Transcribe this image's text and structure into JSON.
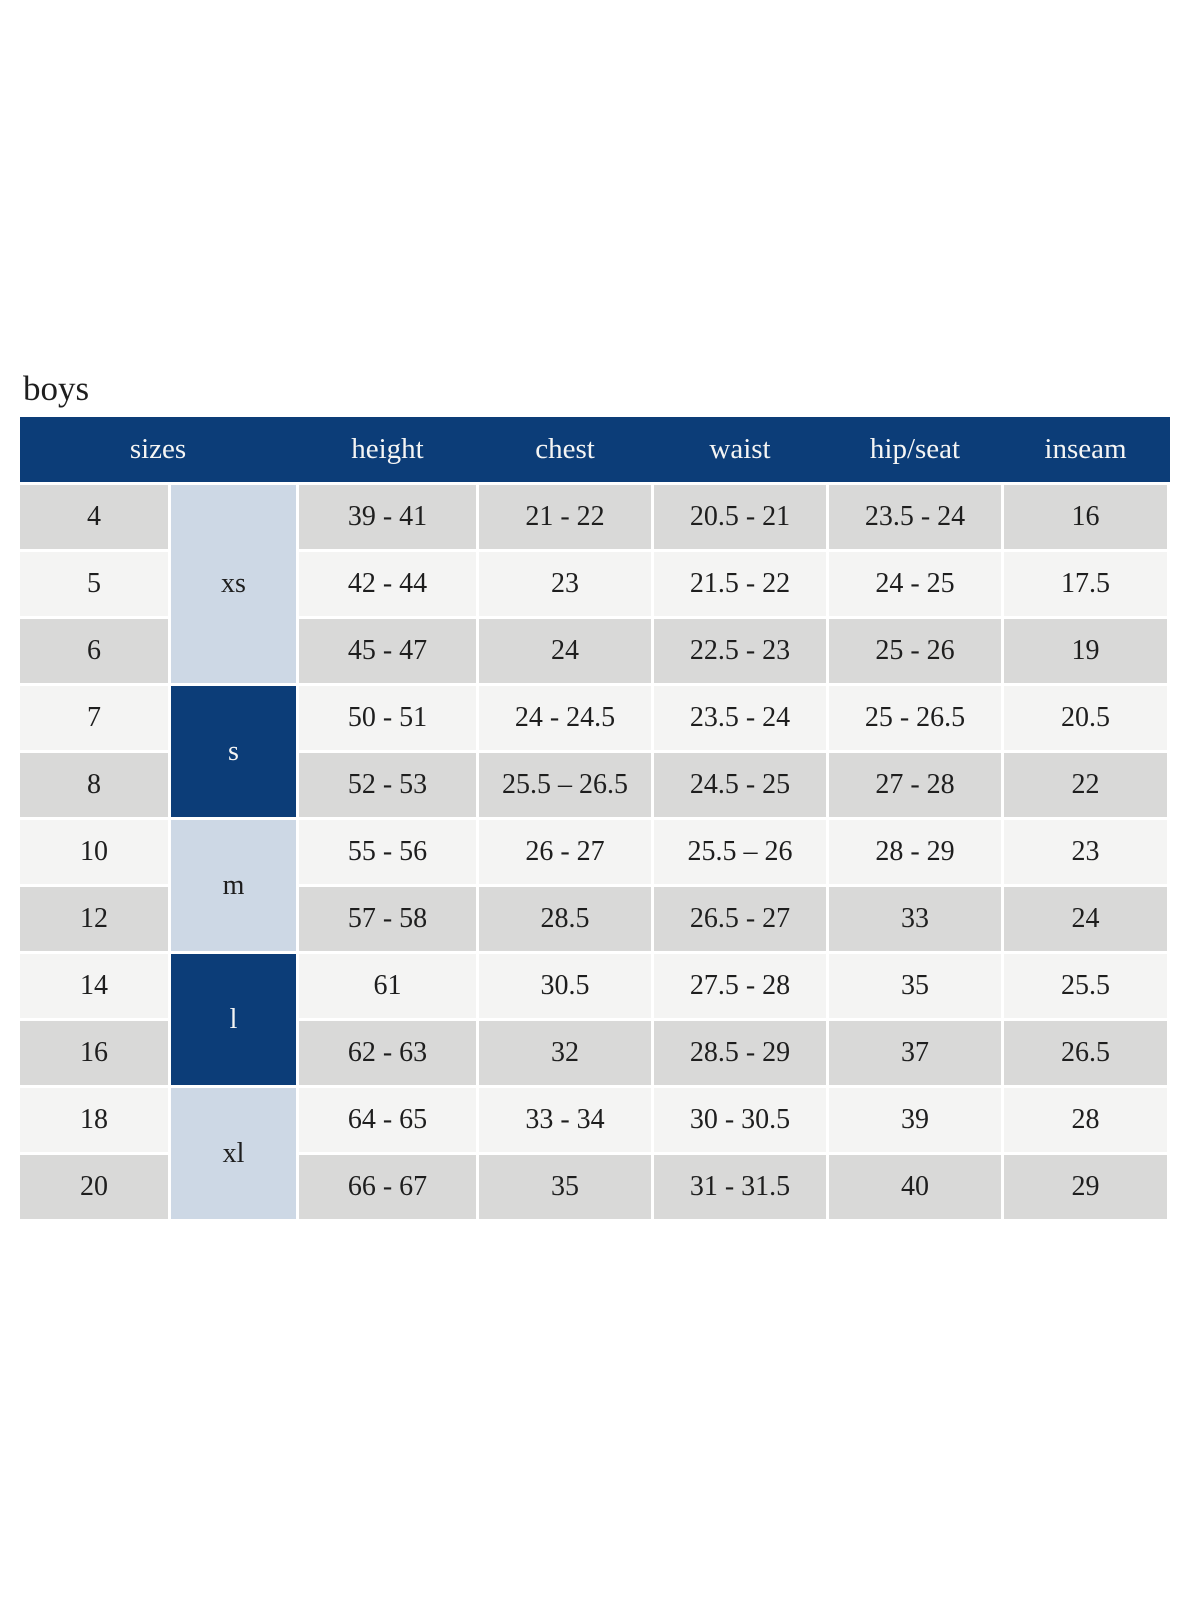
{
  "page": {
    "title": "boys"
  },
  "colors": {
    "header_bg": "#0c3d78",
    "header_text": "#f5f5f4",
    "group_dark_bg": "#0c3d78",
    "group_light_bg": "#cdd8e5",
    "row_gray": "#d9d9d8",
    "row_light": "#f4f4f3",
    "body_text": "#1e1e1e"
  },
  "table": {
    "headers": [
      "sizes",
      "height",
      "chest",
      "waist",
      "hip/seat",
      "inseam"
    ],
    "groups": [
      {
        "label": "xs",
        "style": "light",
        "row_span": 3
      },
      {
        "label": "s",
        "style": "dark",
        "row_span": 2
      },
      {
        "label": "m",
        "style": "light",
        "row_span": 2
      },
      {
        "label": "l",
        "style": "dark",
        "row_span": 2
      },
      {
        "label": "xl",
        "style": "light",
        "row_span": 2
      }
    ],
    "rows": [
      {
        "size": "4",
        "height": "39 - 41",
        "chest": "21 - 22",
        "waist": "20.5 - 21",
        "hip_seat": "23.5 - 24",
        "inseam": "16"
      },
      {
        "size": "5",
        "height": "42 - 44",
        "chest": "23",
        "waist": "21.5 - 22",
        "hip_seat": "24 - 25",
        "inseam": "17.5"
      },
      {
        "size": "6",
        "height": "45 - 47",
        "chest": "24",
        "waist": "22.5 - 23",
        "hip_seat": "25 - 26",
        "inseam": "19"
      },
      {
        "size": "7",
        "height": "50 - 51",
        "chest": "24 - 24.5",
        "waist": "23.5 - 24",
        "hip_seat": "25 - 26.5",
        "inseam": "20.5"
      },
      {
        "size": "8",
        "height": "52 - 53",
        "chest": "25.5 – 26.5",
        "waist": "24.5 - 25",
        "hip_seat": "27 - 28",
        "inseam": "22"
      },
      {
        "size": "10",
        "height": "55 - 56",
        "chest": "26 - 27",
        "waist": "25.5 – 26",
        "hip_seat": "28 - 29",
        "inseam": "23"
      },
      {
        "size": "12",
        "height": "57 - 58",
        "chest": "28.5",
        "waist": "26.5 - 27",
        "hip_seat": "33",
        "inseam": "24"
      },
      {
        "size": "14",
        "height": "61",
        "chest": "30.5",
        "waist": "27.5 - 28",
        "hip_seat": "35",
        "inseam": "25.5"
      },
      {
        "size": "16",
        "height": "62 - 63",
        "chest": "32",
        "waist": "28.5 - 29",
        "hip_seat": "37",
        "inseam": "26.5"
      },
      {
        "size": "18",
        "height": "64 - 65",
        "chest": "33 - 34",
        "waist": "30 - 30.5",
        "hip_seat": "39",
        "inseam": "28"
      },
      {
        "size": "20",
        "height": "66 - 67",
        "chest": "35",
        "waist": "31 - 31.5",
        "hip_seat": "40",
        "inseam": "29"
      }
    ]
  },
  "chart_data": {
    "type": "table",
    "title": "boys",
    "columns": [
      "sizes (number)",
      "sizes (letter)",
      "height",
      "chest",
      "waist",
      "hip/seat",
      "inseam"
    ],
    "rows": [
      [
        "4",
        "xs",
        "39 - 41",
        "21 - 22",
        "20.5 - 21",
        "23.5 - 24",
        "16"
      ],
      [
        "5",
        "xs",
        "42 - 44",
        "23",
        "21.5 - 22",
        "24 - 25",
        "17.5"
      ],
      [
        "6",
        "xs",
        "45 - 47",
        "24",
        "22.5 - 23",
        "25 - 26",
        "19"
      ],
      [
        "7",
        "s",
        "50 - 51",
        "24 - 24.5",
        "23.5 - 24",
        "25 - 26.5",
        "20.5"
      ],
      [
        "8",
        "s",
        "52 - 53",
        "25.5 – 26.5",
        "24.5 - 25",
        "27 - 28",
        "22"
      ],
      [
        "10",
        "m",
        "55 - 56",
        "26 - 27",
        "25.5 – 26",
        "28 - 29",
        "23"
      ],
      [
        "12",
        "m",
        "57 - 58",
        "28.5",
        "26.5 - 27",
        "33",
        "24"
      ],
      [
        "14",
        "l",
        "61",
        "30.5",
        "27.5 - 28",
        "35",
        "25.5"
      ],
      [
        "16",
        "l",
        "62 - 63",
        "32",
        "28.5 - 29",
        "37",
        "26.5"
      ],
      [
        "18",
        "xl",
        "64 - 65",
        "33 - 34",
        "30 - 30.5",
        "39",
        "28"
      ],
      [
        "20",
        "xl",
        "66 - 67",
        "35",
        "31 - 31.5",
        "40",
        "29"
      ]
    ],
    "layout": {
      "striped_rows": true,
      "merged_letter_size_column": true,
      "header_position": "top"
    }
  }
}
